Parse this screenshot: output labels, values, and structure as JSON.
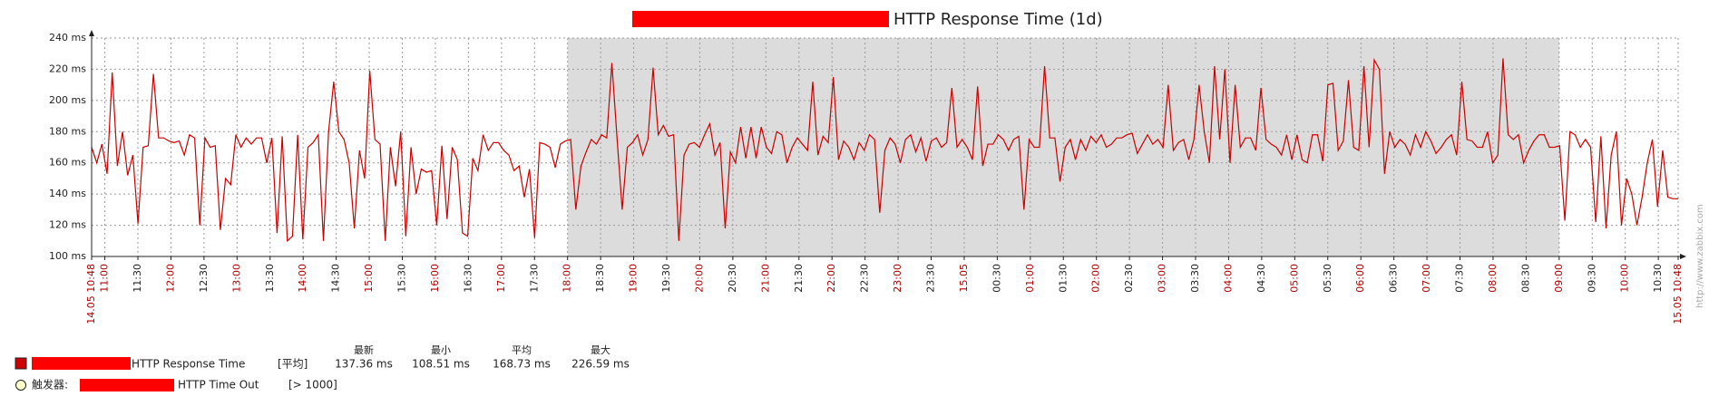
{
  "chart_data": {
    "type": "line",
    "title": "HTTP Response Time (1d)",
    "x_labels": [
      "14.05 10:48",
      "11:00",
      "11:30",
      "12:00",
      "12:30",
      "13:00",
      "13:30",
      "14:00",
      "14:30",
      "15:00",
      "15:30",
      "16:00",
      "16:30",
      "17:00",
      "17:30",
      "18:00",
      "18:30",
      "19:00",
      "19:30",
      "20:00",
      "20:30",
      "21:00",
      "21:30",
      "22:00",
      "22:30",
      "23:00",
      "23:30",
      "15.05",
      "00:30",
      "01:00",
      "01:30",
      "02:00",
      "02:30",
      "03:00",
      "03:30",
      "04:00",
      "04:30",
      "05:00",
      "05:30",
      "06:00",
      "06:30",
      "07:00",
      "07:30",
      "08:00",
      "08:30",
      "09:00",
      "09:30",
      "10:00",
      "10:30",
      "15.05 10:48"
    ],
    "shaded_label_range": [
      15,
      45
    ],
    "series": [
      {
        "name": "HTTP Response Time",
        "color": "#cc0000",
        "values": [
          170,
          160,
          172,
          153,
          218,
          158,
          180,
          152,
          165,
          121,
          170,
          171,
          217,
          176,
          176,
          174,
          173,
          174,
          165,
          178,
          176,
          120,
          176,
          170,
          171,
          117,
          150,
          146,
          178,
          170,
          176,
          172,
          176,
          176,
          160,
          176,
          115,
          177,
          110,
          113,
          178,
          111,
          170,
          173,
          178,
          110,
          180,
          212,
          180,
          175,
          160,
          118,
          168,
          150,
          219,
          175,
          172,
          110,
          170,
          145,
          180,
          113,
          170,
          140,
          156,
          154,
          155,
          120,
          171,
          124,
          170,
          162,
          115,
          113,
          163,
          155,
          178,
          168,
          173,
          173,
          168,
          165,
          155,
          158,
          138,
          156,
          112,
          173,
          172,
          170,
          157,
          172,
          174,
          175,
          130,
          158,
          167,
          175,
          172,
          178,
          176,
          224,
          176,
          130,
          170,
          173,
          178,
          165,
          175,
          221,
          178,
          184,
          177,
          178,
          110,
          165,
          172,
          173,
          170,
          178,
          185,
          165,
          173,
          118,
          167,
          160,
          183,
          163,
          183,
          163,
          183,
          170,
          166,
          180,
          178,
          160,
          170,
          176,
          172,
          168,
          212,
          165,
          177,
          173,
          215,
          162,
          174,
          170,
          162,
          173,
          168,
          178,
          175,
          128,
          168,
          176,
          172,
          160,
          175,
          178,
          167,
          176,
          161,
          174,
          176,
          170,
          173,
          208,
          170,
          175,
          170,
          162,
          209,
          158,
          172,
          172,
          178,
          175,
          168,
          175,
          177,
          130,
          175,
          170,
          170,
          222,
          176,
          176,
          148,
          170,
          175,
          162,
          175,
          168,
          177,
          173,
          178,
          170,
          172,
          176,
          176,
          178,
          179,
          166,
          172,
          178,
          172,
          175,
          170,
          210,
          168,
          173,
          175,
          162,
          175,
          210,
          180,
          160,
          222,
          175,
          220,
          160,
          210,
          170,
          176,
          176,
          168,
          208,
          175,
          172,
          170,
          165,
          178,
          162,
          178,
          162,
          160,
          178,
          178,
          161,
          210,
          211,
          168,
          174,
          213,
          170,
          168,
          222,
          170,
          226,
          220,
          153,
          180,
          170,
          175,
          172,
          165,
          178,
          170,
          180,
          174,
          166,
          170,
          175,
          178,
          165,
          212,
          175,
          174,
          170,
          170,
          180,
          160,
          165,
          227,
          178,
          175,
          178,
          160,
          168,
          174,
          178,
          178,
          170,
          170,
          171,
          123,
          180,
          178,
          170,
          175,
          170,
          122,
          177,
          118,
          165,
          180,
          120,
          150,
          140,
          120,
          138,
          160,
          175,
          132,
          168,
          138,
          137,
          137
        ]
      }
    ],
    "ylim": [
      100,
      240
    ],
    "yticks": [
      {
        "value": 100,
        "label": "100 ms"
      },
      {
        "value": 120,
        "label": "120 ms"
      },
      {
        "value": 140,
        "label": "140 ms"
      },
      {
        "value": 160,
        "label": "160 ms"
      },
      {
        "value": 180,
        "label": "180 ms"
      },
      {
        "value": 200,
        "label": "200 ms"
      },
      {
        "value": 220,
        "label": "220 ms"
      },
      {
        "value": 240,
        "label": "240 ms"
      }
    ],
    "grid": true,
    "legend": {
      "function": "[平均]",
      "stat_headers": [
        "最新",
        "最小",
        "平均",
        "最大"
      ],
      "stats": {
        "values": [
          137.36,
          108.51,
          168.73,
          226.59
        ],
        "value_labels": [
          "137.36 ms",
          "108.51 ms",
          "168.73 ms",
          "226.59 ms"
        ]
      },
      "trigger": {
        "prefix": "触发器:",
        "name": "HTTP Time Out",
        "condition": "[> 1000]",
        "color": "#ffffcc"
      }
    },
    "watermark": "http://www.zabbix.com"
  }
}
